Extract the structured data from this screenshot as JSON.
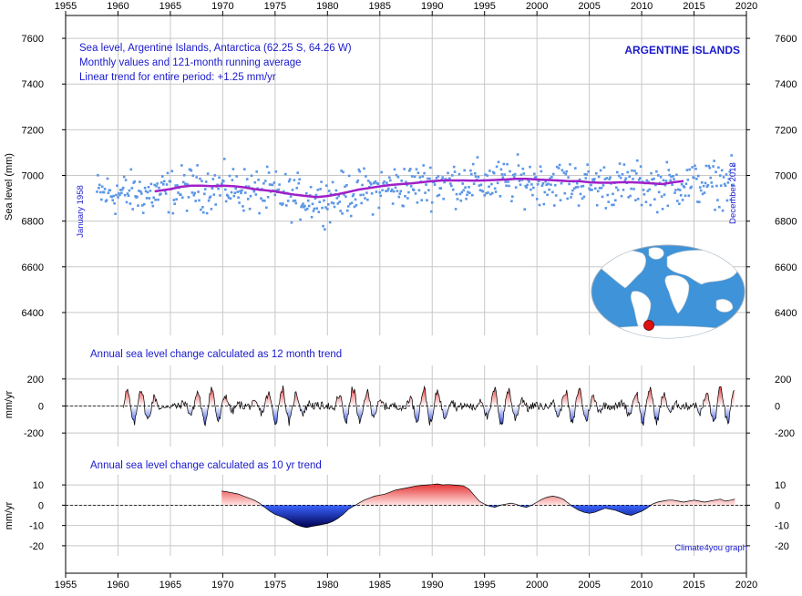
{
  "colors": {
    "grid": "#c8c8c8",
    "text_blue": "#1a1acd",
    "monthly_points": "#5b96e6",
    "running_avg": "#a020c8",
    "positive_fill": "#e63232",
    "negative_fill": "#1e3cdc",
    "watermark": "#1a1acd"
  },
  "chart_data": [
    {
      "type": "scatter",
      "title_lines": [
        "Sea level, Argentine Islands, Antarctica (62.25 S, 64.26 W)",
        "Monthly values and 121-month running average",
        "Linear trend for entire period: +1.25 mm/yr"
      ],
      "station_label": "ARGENTINE ISLANDS",
      "ylabel": "Sea level (mm)",
      "start_label": "January 1958",
      "end_label": "December 2018",
      "xlim": [
        1955,
        2020
      ],
      "ylim": [
        6300,
        7700
      ],
      "x_ticks": [
        1955,
        1960,
        1965,
        1970,
        1975,
        1980,
        1985,
        1990,
        1995,
        2000,
        2005,
        2010,
        2015,
        2020
      ],
      "y_ticks": [
        6400,
        6600,
        6800,
        7000,
        7200,
        7400,
        7600
      ],
      "grid": true,
      "series": [
        {
          "style": "points",
          "x_range": [
            1958.0,
            2018.9
          ],
          "description_values": "monthly sea level values between about 6740 and 7170 mm"
        },
        {
          "style": "line",
          "x": [
            1963.5,
            1965,
            1966,
            1967,
            1968,
            1969,
            1970,
            1971,
            1972,
            1973,
            1974,
            1975,
            1976,
            1977,
            1978,
            1979,
            1980,
            1981,
            1982,
            1983,
            1984,
            1985,
            1986,
            1987,
            1988,
            1989,
            1990,
            1991,
            1992,
            1993,
            1994,
            1995,
            1996,
            1997,
            1998,
            1999,
            2000,
            2001,
            2002,
            2003,
            2004,
            2005,
            2006,
            2007,
            2008,
            2009,
            2010,
            2011,
            2012,
            2013,
            2014
          ],
          "values": [
            6930,
            6940,
            6950,
            6955,
            6955,
            6953,
            6955,
            6953,
            6948,
            6940,
            6935,
            6930,
            6922,
            6915,
            6910,
            6905,
            6910,
            6918,
            6928,
            6938,
            6945,
            6952,
            6958,
            6962,
            6965,
            6970,
            6975,
            6978,
            6978,
            6978,
            6977,
            6978,
            6980,
            6982,
            6985,
            6985,
            6982,
            6980,
            6978,
            6975,
            6975,
            6970,
            6968,
            6968,
            6970,
            6970,
            6968,
            6965,
            6962,
            6970,
            6975
          ]
        }
      ]
    },
    {
      "type": "area",
      "title": "Annual sea level change calculated as 12 month trend",
      "ylabel": "mm/yr",
      "xlim": [
        1955,
        2020
      ],
      "ylim": [
        -300,
        300
      ],
      "y_ticks": [
        -200,
        0,
        200
      ],
      "x_range": [
        1960.5,
        2018.9
      ]
    },
    {
      "type": "area",
      "title": "Annual sea level change calculated as 10 yr trend",
      "ylabel": "mm/yr",
      "xlim": [
        1955,
        2020
      ],
      "ylim": [
        -25,
        15
      ],
      "y_ticks": [
        -20,
        -10,
        0,
        10
      ],
      "x": [
        1969.9,
        1970.5,
        1971,
        1971.5,
        1972,
        1972.5,
        1973,
        1973.5,
        1974,
        1974.5,
        1975,
        1975.5,
        1976,
        1976.5,
        1977,
        1977.5,
        1978,
        1978.5,
        1979,
        1979.5,
        1980,
        1980.5,
        1981,
        1981.5,
        1982,
        1982.5,
        1983,
        1983.5,
        1984,
        1984.5,
        1985,
        1985.5,
        1986,
        1986.5,
        1987,
        1987.5,
        1988,
        1988.5,
        1989,
        1989.5,
        1990,
        1990.5,
        1991,
        1991.5,
        1992,
        1992.5,
        1993,
        1993.5,
        1994,
        1994.5,
        1995,
        1995.5,
        1996,
        1996.5,
        1997,
        1997.5,
        1998,
        1998.5,
        1999,
        1999.5,
        2000,
        2000.5,
        2001,
        2001.5,
        2002,
        2002.5,
        2003,
        2003.5,
        2004,
        2004.5,
        2005,
        2005.5,
        2006,
        2006.5,
        2007,
        2007.5,
        2008,
        2008.5,
        2009,
        2009.5,
        2010,
        2010.5,
        2011,
        2011.5,
        2012,
        2012.5,
        2013,
        2013.5,
        2014,
        2014.5,
        2015,
        2015.5,
        2016,
        2016.5,
        2017,
        2017.5,
        2018,
        2018.5,
        2018.9
      ],
      "values": [
        7,
        6.5,
        6,
        5.5,
        4.5,
        3.5,
        2.5,
        1,
        -1,
        -3,
        -4.5,
        -5.5,
        -6.5,
        -8,
        -9.5,
        -10.5,
        -11,
        -10.5,
        -10,
        -9.5,
        -9,
        -8,
        -6.5,
        -4.5,
        -2,
        -0.5,
        1,
        2.5,
        3.5,
        4.5,
        5,
        5.5,
        6.5,
        7.5,
        8,
        8.5,
        9,
        9.5,
        9.8,
        10,
        10.2,
        10.5,
        10,
        10.2,
        10,
        9.8,
        9.5,
        8,
        5,
        2,
        0.5,
        -0.5,
        -1,
        0,
        0.5,
        1,
        0.5,
        -0.5,
        -1,
        0,
        1.5,
        3,
        4,
        4.5,
        4,
        3,
        1,
        -1,
        -2.5,
        -3.5,
        -4,
        -3.5,
        -2.5,
        -1.5,
        -2,
        -2.5,
        -3.5,
        -4.5,
        -5,
        -4,
        -3,
        -1.5,
        0.5,
        1.5,
        2,
        2.5,
        2.5,
        2,
        1.5,
        2,
        2.5,
        2,
        1.5,
        2,
        2.5,
        3,
        2,
        2.5,
        3
      ]
    }
  ],
  "inset_map": {
    "marker": "red-dot",
    "description": "world map with location marker"
  },
  "watermark": "Climate4you graph"
}
